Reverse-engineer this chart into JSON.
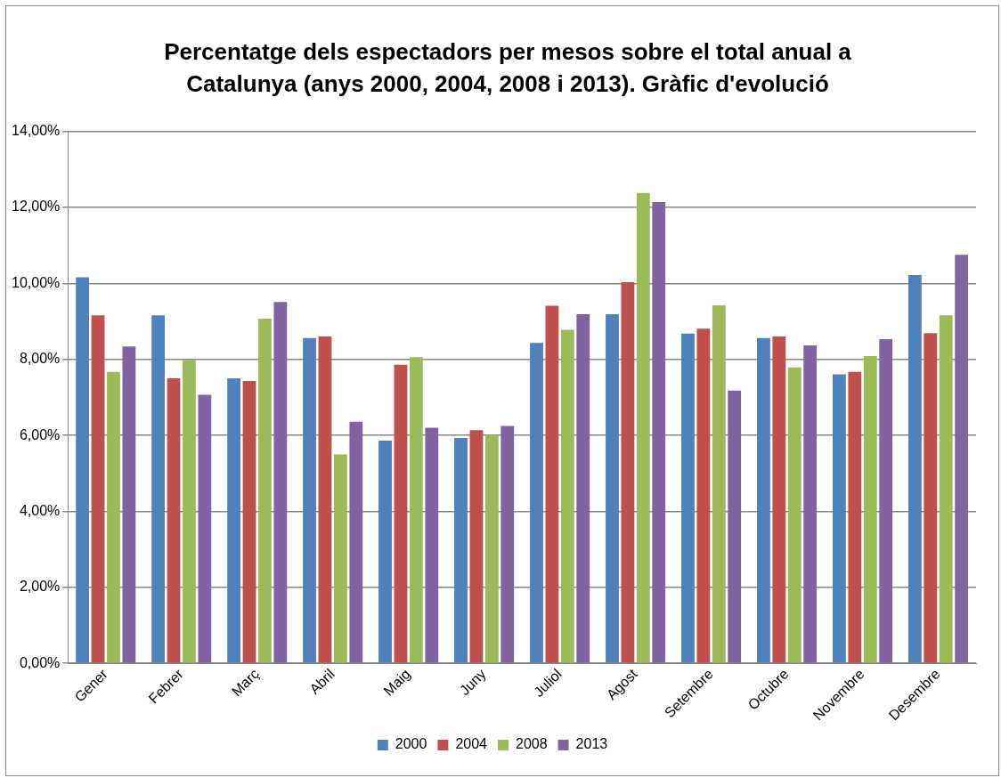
{
  "chart_data": {
    "type": "bar",
    "title": "Percentatge dels espectadors per mesos sobre el total anual a Catalunya (anys 2000, 2004, 2008 i 2013). Gràfic d'evolució",
    "categories": [
      "Gener",
      "Febrer",
      "Març",
      "Abril",
      "Maig",
      "Juny",
      "Juliol",
      "Agost",
      "Setembre",
      "Octubre",
      "Novembre",
      "Desembre"
    ],
    "series": [
      {
        "name": "2000",
        "color": "#4f81bd",
        "values": [
          10.16,
          9.16,
          7.5,
          8.56,
          5.86,
          5.93,
          8.43,
          9.19,
          8.68,
          8.56,
          7.61,
          10.22
        ]
      },
      {
        "name": "2004",
        "color": "#c0504d",
        "values": [
          9.16,
          7.5,
          7.43,
          8.6,
          7.86,
          6.14,
          9.41,
          10.03,
          8.81,
          8.6,
          7.67,
          8.69
        ]
      },
      {
        "name": "2008",
        "color": "#9bbb59",
        "values": [
          7.67,
          7.99,
          9.07,
          5.5,
          8.06,
          6.01,
          8.78,
          12.38,
          9.42,
          7.79,
          8.09,
          9.16
        ]
      },
      {
        "name": "2013",
        "color": "#8064a2",
        "values": [
          8.34,
          7.07,
          9.51,
          6.36,
          6.2,
          6.25,
          9.19,
          12.14,
          7.18,
          8.37,
          8.53,
          10.75
        ]
      }
    ],
    "ylim": [
      0,
      14
    ],
    "yticks": [
      {
        "value": 0,
        "label": "0,00%"
      },
      {
        "value": 2,
        "label": "2,00%"
      },
      {
        "value": 4,
        "label": "4,00%"
      },
      {
        "value": 6,
        "label": "6,00%"
      },
      {
        "value": 8,
        "label": "8,00%"
      },
      {
        "value": 10,
        "label": "10,00%"
      },
      {
        "value": 12,
        "label": "12,00%"
      },
      {
        "value": 14,
        "label": "14,00%"
      }
    ],
    "grid": "y",
    "legend": "bottom"
  }
}
